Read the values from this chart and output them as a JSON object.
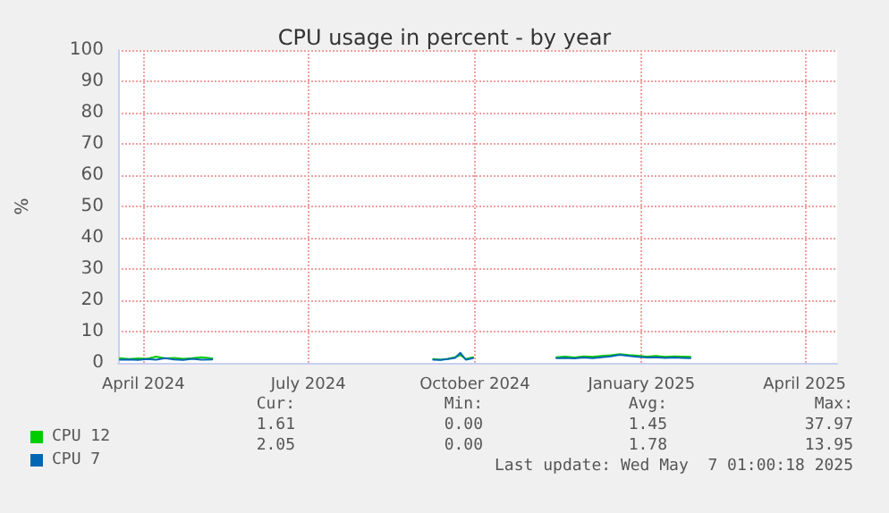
{
  "chart_data": {
    "type": "line",
    "title": "CPU usage in percent - by year",
    "ylabel": "%",
    "x": [
      "2024-03-19",
      "2024-03-24",
      "2024-03-29",
      "2024-04-03",
      "2024-04-08",
      "2024-04-13",
      "2024-04-18",
      "2024-04-23",
      "2024-04-28",
      "2024-05-03",
      "2024-05-09",
      "2024-07-01",
      "2024-09-08",
      "2024-09-12",
      "2024-09-16",
      "2024-09-20",
      "2024-09-23",
      "2024-09-26",
      "2024-09-30",
      "2024-10-25",
      "2024-11-15",
      "2024-11-20",
      "2024-11-25",
      "2024-11-30",
      "2024-12-05",
      "2024-12-10",
      "2024-12-15",
      "2024-12-20",
      "2024-12-25",
      "2024-12-30",
      "2025-01-04",
      "2025-01-09",
      "2025-01-14",
      "2025-01-19",
      "2025-01-24",
      "2025-01-28"
    ],
    "series": [
      {
        "name": "CPU 12",
        "color": "#00cc00",
        "values": [
          1.5,
          1.2,
          1.4,
          1.3,
          2.0,
          1.4,
          1.6,
          1.3,
          1.5,
          1.8,
          1.4,
          null,
          1.2,
          1.0,
          1.3,
          1.8,
          2.5,
          1.2,
          1.8,
          null,
          1.8,
          2.0,
          1.7,
          2.1,
          1.9,
          2.2,
          2.4,
          2.8,
          2.5,
          2.3,
          2.0,
          2.2,
          1.9,
          2.1,
          2.0,
          1.9
        ]
      },
      {
        "name": "CPU 7",
        "color": "#0066b3",
        "values": [
          1.0,
          1.1,
          0.9,
          1.2,
          1.0,
          1.5,
          1.1,
          0.9,
          1.3,
          1.0,
          1.1,
          null,
          1.0,
          0.9,
          1.2,
          1.6,
          3.2,
          1.0,
          1.5,
          null,
          1.5,
          1.6,
          1.4,
          1.7,
          1.5,
          1.8,
          2.1,
          2.6,
          2.2,
          1.9,
          1.7,
          1.8,
          1.6,
          1.7,
          1.6,
          1.5
        ]
      }
    ],
    "xlim": [
      "2024-03-18",
      "2025-04-19"
    ],
    "xticks": [
      {
        "value": "2024-04-01",
        "label": "April 2024"
      },
      {
        "value": "2024-07-01",
        "label": "July 2024"
      },
      {
        "value": "2024-10-01",
        "label": "October 2024"
      },
      {
        "value": "2025-01-01",
        "label": "January 2025"
      },
      {
        "value": "2025-04-01",
        "label": "April 2025"
      }
    ],
    "ylim": [
      0,
      100
    ],
    "yticks": [
      0,
      10,
      20,
      30,
      40,
      50,
      60,
      70,
      80,
      90,
      100
    ],
    "grid": true,
    "legend": "bottom left",
    "marker": "none",
    "line_style": "solid",
    "annotations": [
      "Cur:",
      "Min:",
      "Avg:",
      "Max:",
      "1.61",
      "0.00",
      "1.45",
      "37.97",
      "2.05",
      "0.00",
      "1.78",
      "13.95",
      "Last update: Wed May  7 01:00:18 2025"
    ]
  }
}
